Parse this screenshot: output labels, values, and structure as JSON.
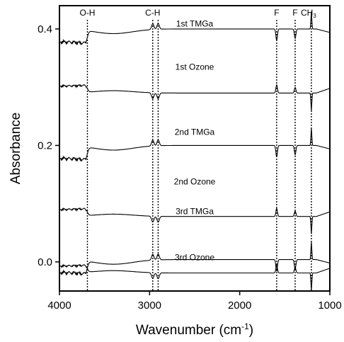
{
  "chart_data": {
    "type": "line",
    "title": "",
    "xlabel": "Wavenumber (cm",
    "xlabel_sup": "-1",
    "xlabel_suffix": ")",
    "ylabel": "Absorbance",
    "xlim": [
      4000,
      1000
    ],
    "ylim": [
      -0.05,
      0.44
    ],
    "x_reversed": true,
    "grid": false,
    "x_ticks": [
      {
        "value": 4000,
        "label": "4000"
      },
      {
        "value": 3000,
        "label": "3000"
      },
      {
        "value": 2000,
        "label": "2000"
      },
      {
        "value": 1000,
        "label": "1000"
      }
    ],
    "y_ticks": [
      {
        "value": 0.0,
        "label": "0.0"
      },
      {
        "value": 0.2,
        "label": "0.2"
      },
      {
        "value": 0.4,
        "label": "0.4"
      }
    ],
    "markers": [
      {
        "x": 3690,
        "label": "O-H",
        "sub": ""
      },
      {
        "x": 2965,
        "label": "C-H",
        "sub": ""
      },
      {
        "x": 2905,
        "label": "",
        "sub": ""
      },
      {
        "x": 1590,
        "label": "F",
        "sub": ""
      },
      {
        "x": 1385,
        "label": "F",
        "sub": ""
      },
      {
        "x": 1205,
        "label": "CH",
        "sub": "3"
      }
    ],
    "series": [
      {
        "name": "1st TMGa",
        "kind": "tmga",
        "baseline": 0.4,
        "label_x": 2500,
        "label_y": 0.404
      },
      {
        "name": "1st Ozone",
        "kind": "ozone",
        "baseline": 0.302,
        "label_x": 2500,
        "label_y": 0.33
      },
      {
        "name": "2nd TMGa",
        "kind": "tmga",
        "baseline": 0.2,
        "label_x": 2500,
        "label_y": 0.218
      },
      {
        "name": "2nd Ozone",
        "kind": "ozone",
        "baseline": 0.09,
        "label_x": 2500,
        "label_y": 0.133
      },
      {
        "name": "3rd TMGa",
        "kind": "tmga",
        "baseline": 0.004,
        "label_x": 2500,
        "label_y": 0.082
      },
      {
        "name": "3rd Ozone",
        "kind": "ozone",
        "baseline": -0.007,
        "label_x": 2500,
        "label_y": 0.003
      }
    ]
  }
}
